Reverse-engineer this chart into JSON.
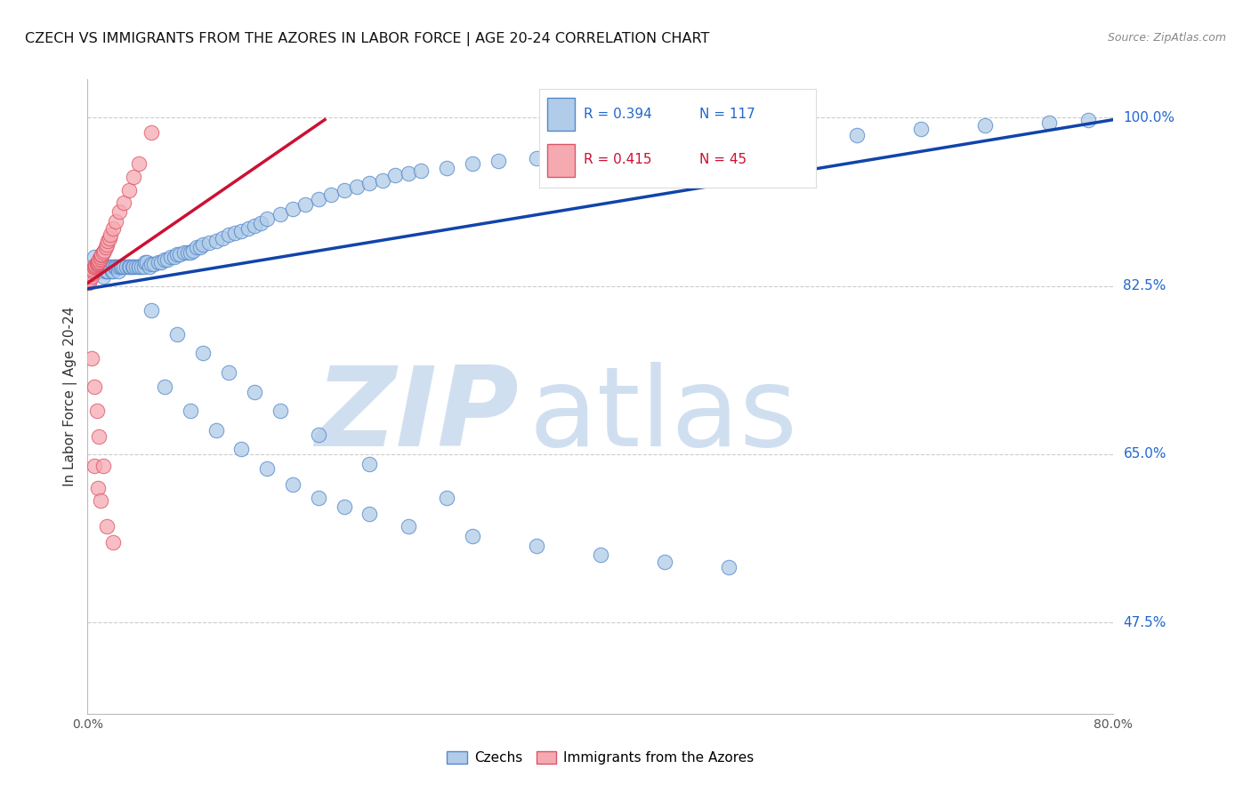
{
  "title": "CZECH VS IMMIGRANTS FROM THE AZORES IN LABOR FORCE | AGE 20-24 CORRELATION CHART",
  "source": "Source: ZipAtlas.com",
  "ylabel": "In Labor Force | Age 20-24",
  "xlim": [
    0.0,
    0.8
  ],
  "ylim": [
    0.38,
    1.04
  ],
  "xticks": [
    0.0,
    0.1,
    0.2,
    0.3,
    0.4,
    0.5,
    0.6,
    0.7,
    0.8
  ],
  "xticklabels": [
    "0.0%",
    "",
    "",
    "",
    "",
    "",
    "",
    "",
    "80.0%"
  ],
  "ytick_positions": [
    1.0,
    0.825,
    0.65,
    0.475
  ],
  "ytick_labels": [
    "100.0%",
    "82.5%",
    "65.0%",
    "47.5%"
  ],
  "legend_blue_label": "Czechs",
  "legend_pink_label": "Immigrants from the Azores",
  "blue_R": "0.394",
  "blue_N": "117",
  "pink_R": "0.415",
  "pink_N": "45",
  "blue_scatter_color": "#b0cce8",
  "blue_scatter_edge": "#5588cc",
  "pink_scatter_color": "#f5aab2",
  "pink_scatter_edge": "#dd5566",
  "blue_line_color": "#1144aa",
  "pink_line_color": "#cc1133",
  "watermark_color": "#d0dff0",
  "blue_trendline_x": [
    0.0,
    0.8
  ],
  "blue_trendline_y": [
    0.822,
    0.998
  ],
  "pink_trendline_x": [
    0.0,
    0.185
  ],
  "pink_trendline_y": [
    0.828,
    0.998
  ],
  "blue_points_x": [
    0.005,
    0.007,
    0.008,
    0.009,
    0.01,
    0.01,
    0.012,
    0.012,
    0.013,
    0.014,
    0.015,
    0.015,
    0.016,
    0.017,
    0.018,
    0.019,
    0.02,
    0.02,
    0.021,
    0.022,
    0.023,
    0.024,
    0.025,
    0.026,
    0.027,
    0.028,
    0.03,
    0.032,
    0.033,
    0.035,
    0.036,
    0.038,
    0.04,
    0.04,
    0.042,
    0.044,
    0.045,
    0.046,
    0.048,
    0.05,
    0.052,
    0.055,
    0.057,
    0.06,
    0.062,
    0.065,
    0.068,
    0.07,
    0.072,
    0.075,
    0.078,
    0.08,
    0.082,
    0.085,
    0.088,
    0.09,
    0.095,
    0.1,
    0.105,
    0.11,
    0.115,
    0.12,
    0.125,
    0.13,
    0.135,
    0.14,
    0.15,
    0.16,
    0.17,
    0.18,
    0.19,
    0.2,
    0.21,
    0.22,
    0.23,
    0.24,
    0.25,
    0.26,
    0.28,
    0.3,
    0.32,
    0.35,
    0.38,
    0.4,
    0.43,
    0.46,
    0.5,
    0.54,
    0.6,
    0.65,
    0.7,
    0.75,
    0.78,
    0.06,
    0.08,
    0.1,
    0.12,
    0.14,
    0.16,
    0.18,
    0.2,
    0.22,
    0.25,
    0.3,
    0.35,
    0.4,
    0.45,
    0.5,
    0.05,
    0.07,
    0.09,
    0.11,
    0.13,
    0.15,
    0.18,
    0.22,
    0.28
  ],
  "blue_points_y": [
    0.855,
    0.84,
    0.845,
    0.84,
    0.845,
    0.85,
    0.84,
    0.835,
    0.845,
    0.84,
    0.845,
    0.84,
    0.84,
    0.845,
    0.845,
    0.84,
    0.845,
    0.84,
    0.845,
    0.845,
    0.845,
    0.84,
    0.845,
    0.845,
    0.845,
    0.845,
    0.845,
    0.845,
    0.845,
    0.845,
    0.845,
    0.845,
    0.845,
    0.845,
    0.845,
    0.845,
    0.85,
    0.85,
    0.845,
    0.848,
    0.848,
    0.85,
    0.85,
    0.852,
    0.852,
    0.855,
    0.855,
    0.858,
    0.858,
    0.86,
    0.86,
    0.86,
    0.862,
    0.865,
    0.865,
    0.868,
    0.87,
    0.872,
    0.875,
    0.878,
    0.88,
    0.882,
    0.885,
    0.888,
    0.89,
    0.895,
    0.9,
    0.905,
    0.91,
    0.915,
    0.92,
    0.925,
    0.928,
    0.932,
    0.935,
    0.94,
    0.942,
    0.945,
    0.948,
    0.952,
    0.955,
    0.958,
    0.962,
    0.965,
    0.968,
    0.97,
    0.975,
    0.978,
    0.982,
    0.988,
    0.992,
    0.995,
    0.998,
    0.72,
    0.695,
    0.675,
    0.655,
    0.635,
    0.618,
    0.605,
    0.595,
    0.588,
    0.575,
    0.565,
    0.555,
    0.545,
    0.538,
    0.532,
    0.8,
    0.775,
    0.755,
    0.735,
    0.715,
    0.695,
    0.67,
    0.64,
    0.605
  ],
  "pink_points_x": [
    0.001,
    0.002,
    0.003,
    0.003,
    0.004,
    0.004,
    0.005,
    0.005,
    0.006,
    0.006,
    0.007,
    0.007,
    0.008,
    0.008,
    0.009,
    0.009,
    0.01,
    0.01,
    0.011,
    0.011,
    0.012,
    0.013,
    0.014,
    0.015,
    0.016,
    0.017,
    0.018,
    0.02,
    0.022,
    0.025,
    0.028,
    0.032,
    0.036,
    0.04,
    0.05,
    0.005,
    0.008,
    0.01,
    0.015,
    0.02,
    0.003,
    0.005,
    0.007,
    0.009,
    0.012
  ],
  "pink_points_y": [
    0.828,
    0.832,
    0.835,
    0.838,
    0.84,
    0.842,
    0.844,
    0.845,
    0.846,
    0.847,
    0.848,
    0.848,
    0.849,
    0.85,
    0.851,
    0.852,
    0.853,
    0.855,
    0.857,
    0.858,
    0.86,
    0.862,
    0.865,
    0.868,
    0.872,
    0.875,
    0.878,
    0.885,
    0.892,
    0.902,
    0.912,
    0.925,
    0.938,
    0.952,
    0.985,
    0.638,
    0.615,
    0.602,
    0.575,
    0.558,
    0.75,
    0.72,
    0.695,
    0.668,
    0.638
  ]
}
